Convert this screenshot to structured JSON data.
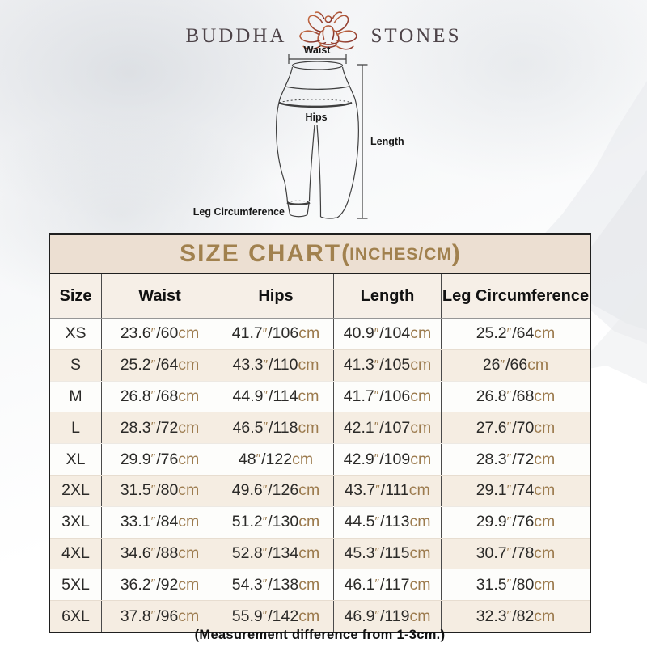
{
  "brand": {
    "name_left": "BUDDHA",
    "name_right": "STONES"
  },
  "diagram": {
    "waist": "Waist",
    "hips": "Hips",
    "length": "Length",
    "leg": "Leg Circumference"
  },
  "table": {
    "title_main": "SIZE CHART",
    "title_open": "(",
    "title_unit": "INCHES/CM",
    "title_close": ")",
    "columns": [
      "Size",
      "Waist",
      "Hips",
      "Length",
      "Leg Circumference"
    ],
    "unit_inch_mark": "″",
    "unit_cm": "cm",
    "rows": [
      {
        "size": "XS",
        "waist": {
          "in": "23.6",
          "cm": "60"
        },
        "hips": {
          "in": "41.7",
          "cm": "106"
        },
        "length": {
          "in": "40.9",
          "cm": "104"
        },
        "leg": {
          "in": "25.2",
          "cm": "64"
        }
      },
      {
        "size": "S",
        "waist": {
          "in": "25.2",
          "cm": "64"
        },
        "hips": {
          "in": "43.3",
          "cm": "110"
        },
        "length": {
          "in": "41.3",
          "cm": "105"
        },
        "leg": {
          "in": "26",
          "cm": "66"
        }
      },
      {
        "size": "M",
        "waist": {
          "in": "26.8",
          "cm": "68"
        },
        "hips": {
          "in": "44.9",
          "cm": "114"
        },
        "length": {
          "in": "41.7",
          "cm": "106"
        },
        "leg": {
          "in": "26.8",
          "cm": "68"
        }
      },
      {
        "size": "L",
        "waist": {
          "in": "28.3",
          "cm": "72"
        },
        "hips": {
          "in": "46.5",
          "cm": "118"
        },
        "length": {
          "in": "42.1",
          "cm": "107"
        },
        "leg": {
          "in": "27.6",
          "cm": "70"
        }
      },
      {
        "size": "XL",
        "waist": {
          "in": "29.9",
          "cm": "76"
        },
        "hips": {
          "in": "48",
          "cm": "122"
        },
        "length": {
          "in": "42.9",
          "cm": "109"
        },
        "leg": {
          "in": "28.3",
          "cm": "72"
        }
      },
      {
        "size": "2XL",
        "waist": {
          "in": "31.5",
          "cm": "80"
        },
        "hips": {
          "in": "49.6",
          "cm": "126"
        },
        "length": {
          "in": "43.7",
          "cm": "111"
        },
        "leg": {
          "in": "29.1",
          "cm": "74"
        }
      },
      {
        "size": "3XL",
        "waist": {
          "in": "33.1",
          "cm": "84"
        },
        "hips": {
          "in": "51.2",
          "cm": "130"
        },
        "length": {
          "in": "44.5",
          "cm": "113"
        },
        "leg": {
          "in": "29.9",
          "cm": "76"
        }
      },
      {
        "size": "4XL",
        "waist": {
          "in": "34.6",
          "cm": "88"
        },
        "hips": {
          "in": "52.8",
          "cm": "134"
        },
        "length": {
          "in": "45.3",
          "cm": "115"
        },
        "leg": {
          "in": "30.7",
          "cm": "78"
        }
      },
      {
        "size": "5XL",
        "waist": {
          "in": "36.2",
          "cm": "92"
        },
        "hips": {
          "in": "54.3",
          "cm": "138"
        },
        "length": {
          "in": "46.1",
          "cm": "117"
        },
        "leg": {
          "in": "31.5",
          "cm": "80"
        }
      },
      {
        "size": "6XL",
        "waist": {
          "in": "37.8",
          "cm": "96"
        },
        "hips": {
          "in": "55.9",
          "cm": "142"
        },
        "length": {
          "in": "46.9",
          "cm": "119"
        },
        "leg": {
          "in": "32.3",
          "cm": "82"
        }
      }
    ]
  },
  "footer": {
    "note": "(Measurement difference from 1-3cm.)"
  },
  "colors": {
    "accent_gold": "#a1814e",
    "value_unit_gold": "#9c7b4e",
    "title_band_bg": "#ecdfd2",
    "header_row_bg": "#f6efe7",
    "row_alt_bg": "#f5ede2",
    "border_dark": "#1f1f1f",
    "logo_gradient_start": "#c96f45",
    "logo_gradient_end": "#7d2b28"
  }
}
